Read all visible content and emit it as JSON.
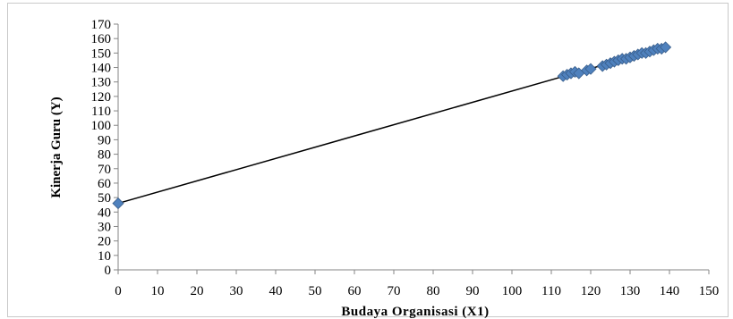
{
  "chart_data": {
    "type": "scatter",
    "title": "",
    "xlabel": "Budaya Organisasi (X1)",
    "ylabel": "Kinerja Guru (Y)",
    "xlim": [
      0,
      150
    ],
    "ylim": [
      0,
      170
    ],
    "xticks": [
      0,
      10,
      20,
      30,
      40,
      50,
      60,
      70,
      80,
      90,
      100,
      110,
      120,
      130,
      140,
      150
    ],
    "yticks": [
      0,
      10,
      20,
      30,
      40,
      50,
      60,
      70,
      80,
      90,
      100,
      110,
      120,
      130,
      140,
      150,
      160,
      170
    ],
    "grid": false,
    "legend": "none",
    "marker": "diamond",
    "marker_color": "#4f81bd",
    "line_color": "#000000",
    "points": [
      [
        0,
        46
      ],
      [
        113,
        134
      ],
      [
        114,
        135
      ],
      [
        115,
        136
      ],
      [
        116,
        137
      ],
      [
        117,
        136
      ],
      [
        119,
        138
      ],
      [
        120,
        139
      ],
      [
        123,
        141
      ],
      [
        124,
        142
      ],
      [
        125,
        143
      ],
      [
        126,
        144
      ],
      [
        127,
        145
      ],
      [
        128,
        146
      ],
      [
        129,
        146
      ],
      [
        130,
        147
      ],
      [
        131,
        148
      ],
      [
        132,
        149
      ],
      [
        133,
        150
      ],
      [
        134,
        150
      ],
      [
        135,
        151
      ],
      [
        136,
        152
      ],
      [
        137,
        153
      ],
      [
        138,
        153
      ],
      [
        139,
        154
      ]
    ],
    "trendline": {
      "x": [
        0,
        139
      ],
      "y": [
        46,
        154
      ]
    }
  }
}
